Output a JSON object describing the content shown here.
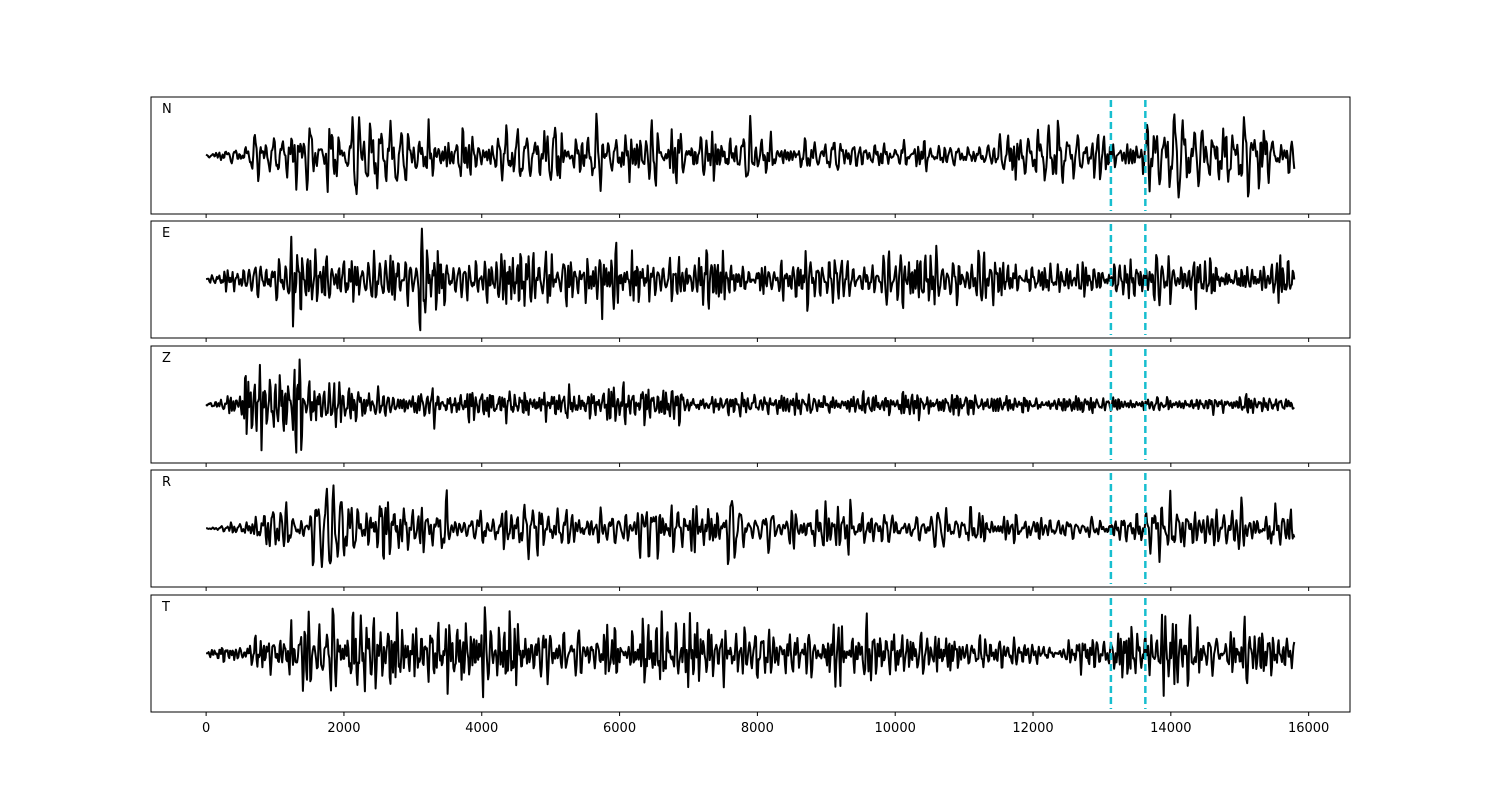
{
  "chart_data": {
    "type": "line",
    "layout": "5 vertically stacked panels sharing x axis",
    "x_axis": {
      "ticks": [
        0,
        2000,
        4000,
        6000,
        8000,
        10000,
        12000,
        14000,
        16000
      ],
      "tick_labels": [
        "0",
        "2000",
        "4000",
        "6000",
        "8000",
        "10000",
        "12000",
        "14000",
        "16000"
      ],
      "xlim": [
        -800,
        16600
      ],
      "label": ""
    },
    "signal_range": [
      0,
      15800
    ],
    "y_ticks_shown": false,
    "line_color": "#000000",
    "marker_color": "#17becf",
    "vertical_markers": [
      13130,
      13630
    ],
    "panels": [
      {
        "label": "N",
        "envelope_x": [
          0,
          500,
          1000,
          2000,
          3000,
          4000,
          6000,
          7000,
          8000,
          9000,
          10000,
          11000,
          12000,
          13000,
          14000,
          15000,
          15800
        ],
        "envelope_y": [
          0.03,
          0.2,
          0.55,
          0.75,
          0.62,
          0.55,
          0.55,
          0.58,
          0.45,
          0.3,
          0.25,
          0.35,
          0.45,
          0.5,
          0.62,
          0.6,
          0.45
        ],
        "seed": 11,
        "end_offset": -0.35
      },
      {
        "label": "E",
        "envelope_x": [
          0,
          500,
          1000,
          1500,
          2000,
          3000,
          4000,
          6000,
          8000,
          10000,
          10600,
          12000,
          13000,
          14000,
          15000,
          15800
        ],
        "envelope_y": [
          0.03,
          0.25,
          0.6,
          0.8,
          0.65,
          0.6,
          0.6,
          0.55,
          0.45,
          0.42,
          0.55,
          0.35,
          0.3,
          0.45,
          0.45,
          0.45
        ],
        "seed": 23,
        "end_offset": 0.1
      },
      {
        "label": "Z",
        "envelope_x": [
          0,
          450,
          600,
          1000,
          1500,
          2500,
          3500,
          4500,
          6000,
          7000,
          8000,
          10000,
          12000,
          14000,
          15800
        ],
        "envelope_y": [
          0.02,
          0.25,
          0.8,
          0.75,
          0.65,
          0.42,
          0.32,
          0.25,
          0.42,
          0.3,
          0.2,
          0.18,
          0.16,
          0.14,
          0.14
        ],
        "seed": 37,
        "end_offset": -0.12
      },
      {
        "label": "R",
        "envelope_x": [
          0,
          500,
          1000,
          1500,
          2700,
          3500,
          4500,
          6000,
          7000,
          8000,
          10000,
          12000,
          13000,
          14000,
          15000,
          15800
        ],
        "envelope_y": [
          0.03,
          0.15,
          0.4,
          0.65,
          0.8,
          0.45,
          0.4,
          0.45,
          0.48,
          0.38,
          0.32,
          0.22,
          0.22,
          0.38,
          0.42,
          0.35
        ],
        "seed": 49,
        "end_offset": -0.2
      },
      {
        "label": "T",
        "envelope_x": [
          0,
          500,
          1000,
          1500,
          2000,
          3000,
          4000,
          5000,
          6000,
          7000,
          8000,
          9000,
          10000,
          12000,
          13000,
          14000,
          15000,
          15800
        ],
        "envelope_y": [
          0.03,
          0.2,
          0.55,
          0.75,
          0.7,
          0.6,
          0.72,
          0.55,
          0.55,
          0.65,
          0.5,
          0.48,
          0.42,
          0.3,
          0.35,
          0.62,
          0.55,
          0.45
        ],
        "seed": 61,
        "end_offset": 0.25
      }
    ]
  }
}
